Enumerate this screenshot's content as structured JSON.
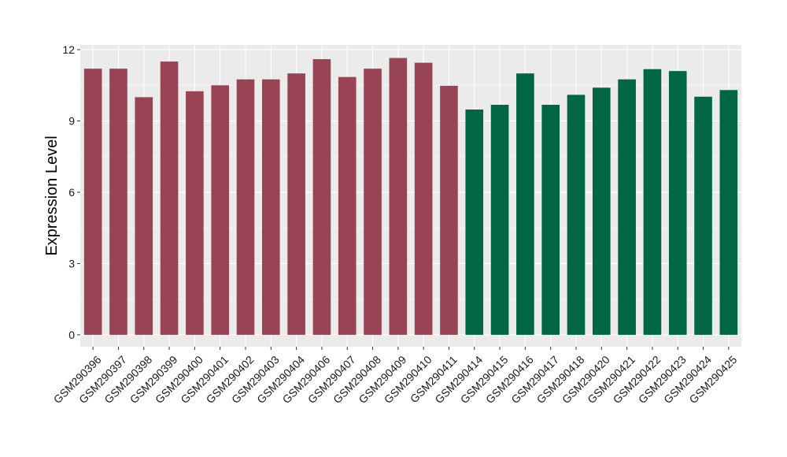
{
  "chart_data": {
    "type": "bar",
    "title": "",
    "xlabel": "",
    "ylabel": "Expression Level",
    "ylim": [
      -0.5,
      12.2
    ],
    "yticks": [
      0,
      3,
      6,
      9,
      12
    ],
    "grid": true,
    "legend": "none",
    "categories": [
      "GSM290396",
      "GSM290397",
      "GSM290398",
      "GSM290399",
      "GSM290400",
      "GSM290401",
      "GSM290402",
      "GSM290403",
      "GSM290404",
      "GSM290406",
      "GSM290407",
      "GSM290408",
      "GSM290409",
      "GSM290410",
      "GSM290411",
      "GSM290414",
      "GSM290415",
      "GSM290416",
      "GSM290417",
      "GSM290418",
      "GSM290420",
      "GSM290421",
      "GSM290422",
      "GSM290423",
      "GSM290424",
      "GSM290425"
    ],
    "values": [
      11.2,
      11.2,
      10.0,
      11.5,
      10.25,
      10.5,
      10.75,
      10.75,
      11.0,
      11.6,
      10.85,
      11.2,
      11.65,
      11.45,
      10.48,
      9.48,
      9.68,
      11.0,
      9.68,
      10.1,
      10.4,
      10.75,
      11.18,
      11.1,
      10.02,
      10.3
    ],
    "groups": [
      "a",
      "a",
      "a",
      "a",
      "a",
      "a",
      "a",
      "a",
      "a",
      "a",
      "a",
      "a",
      "a",
      "a",
      "a",
      "b",
      "b",
      "b",
      "b",
      "b",
      "b",
      "b",
      "b",
      "b",
      "b",
      "b"
    ],
    "colors": {
      "a": "#994455",
      "b": "#006644",
      "panel_bg": "#ebebeb",
      "grid": "#ffffff",
      "tick": "#333333"
    }
  }
}
